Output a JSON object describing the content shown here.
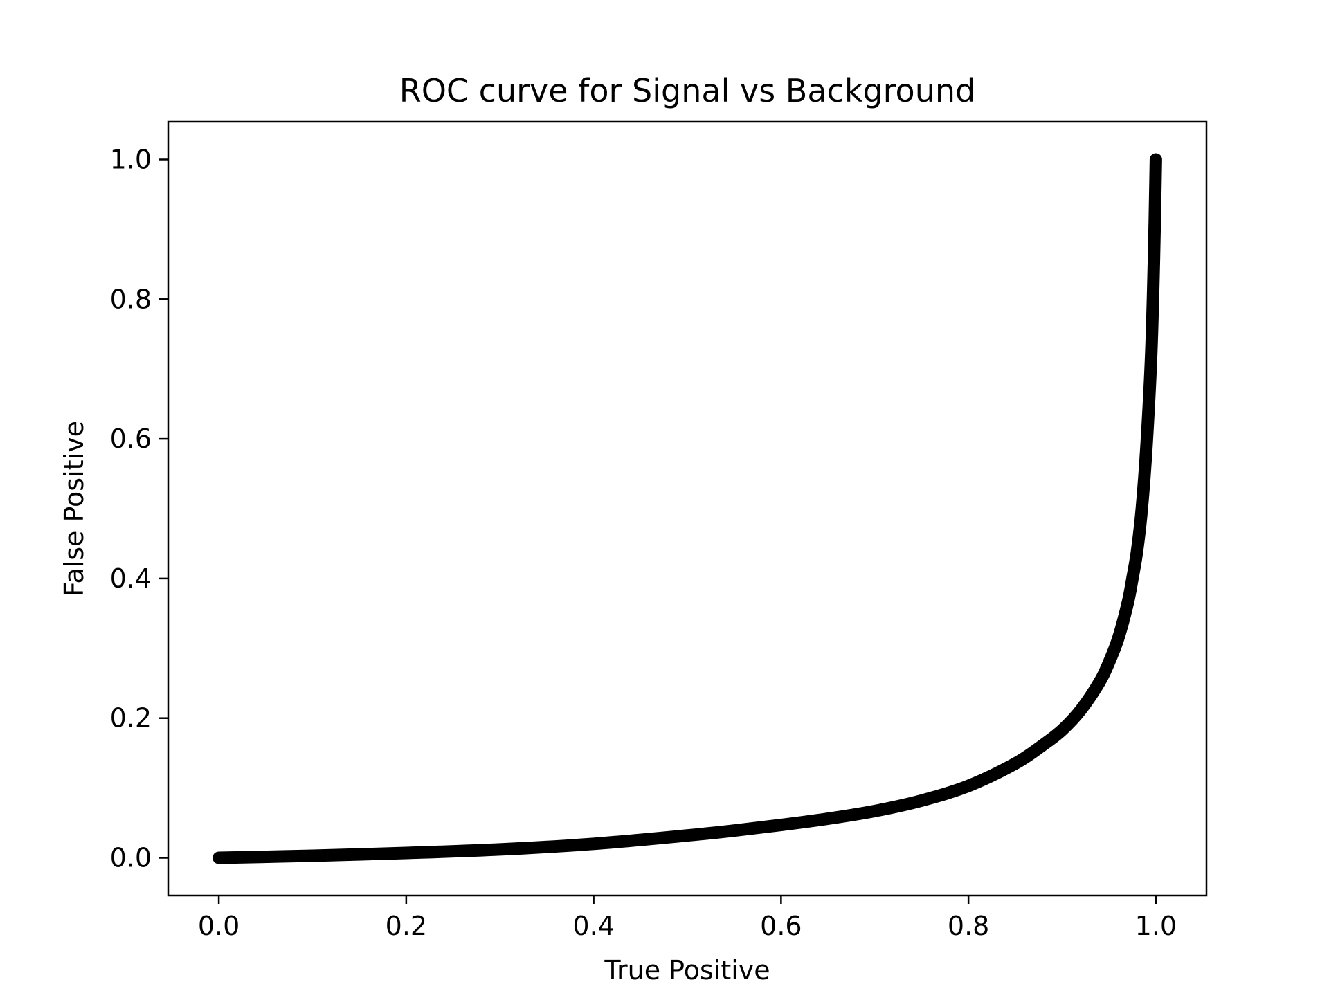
{
  "chart_data": {
    "type": "line",
    "title": "ROC curve for Signal vs Background",
    "xlabel": "True Positive",
    "ylabel": "False Positive",
    "xlim": [
      -0.054,
      1.054
    ],
    "ylim": [
      -0.054,
      1.054
    ],
    "xticks": [
      "0.0",
      "0.2",
      "0.4",
      "0.6",
      "0.8",
      "1.0"
    ],
    "yticks": [
      "0.0",
      "0.2",
      "0.4",
      "0.6",
      "0.8",
      "1.0"
    ],
    "grid": false,
    "legend": "none",
    "series": [
      {
        "color": "#000000",
        "x": [
          0.0,
          0.1,
          0.2,
          0.3,
          0.4,
          0.5,
          0.55,
          0.6,
          0.65,
          0.7,
          0.75,
          0.8,
          0.85,
          0.88,
          0.9,
          0.92,
          0.94,
          0.95,
          0.96,
          0.97,
          0.975,
          0.98,
          0.985,
          0.99,
          0.995,
          0.998,
          1.0
        ],
        "y": [
          0.0,
          0.003,
          0.007,
          0.012,
          0.02,
          0.032,
          0.039,
          0.047,
          0.056,
          0.067,
          0.082,
          0.103,
          0.135,
          0.162,
          0.183,
          0.212,
          0.252,
          0.28,
          0.315,
          0.365,
          0.4,
          0.44,
          0.5,
          0.59,
          0.72,
          0.86,
          1.0
        ]
      }
    ]
  }
}
